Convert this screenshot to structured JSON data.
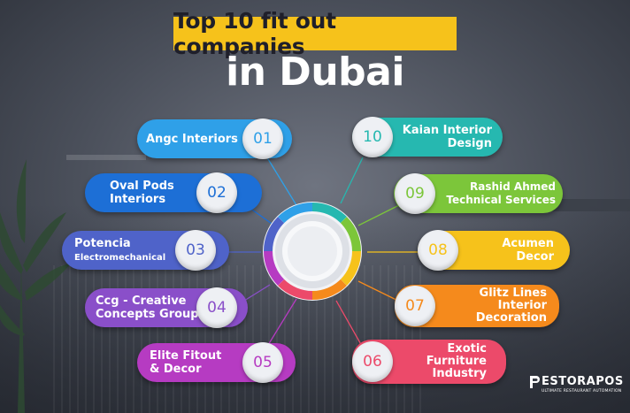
{
  "title": {
    "line1": "Top 10 fit out companies",
    "line2": "in Dubai",
    "highlight_color": "#f6c21b"
  },
  "companies_left": [
    {
      "num": "01",
      "name": "Angc Interiors",
      "color": "#2fa0e8"
    },
    {
      "num": "02",
      "name": "Oval Pods Interiors",
      "name_line1": "Oval Pods",
      "name_line2": "Interiors",
      "color": "#1d6fd6"
    },
    {
      "num": "03",
      "name": "Potencia Electromechanical",
      "name_line1": "Potencia",
      "name_line2": "Electromechanical",
      "color": "#4f63c9"
    },
    {
      "num": "04",
      "name": "Ccg - Creative Concepts Group",
      "name_line1": "Ccg - Creative",
      "name_line2": "Concepts Group",
      "color": "#8a4fc9"
    },
    {
      "num": "05",
      "name": "Elite Fitout & Decor",
      "name_line1": "Elite Fitout",
      "name_line2": "& Decor",
      "color": "#b63bc2"
    }
  ],
  "companies_right": [
    {
      "num": "10",
      "name": "Kaian Interior Design",
      "name_line1": "Kaian Interior",
      "name_line2": "Design",
      "color": "#26b8b0"
    },
    {
      "num": "09",
      "name": "Rashid Ahmed Technical Services",
      "name_line1": "Rashid Ahmed",
      "name_line2": "Technical Services",
      "color": "#7cc63a"
    },
    {
      "num": "08",
      "name": "Acumen Decor",
      "name_line1": "Acumen",
      "name_line2": "Decor",
      "color": "#f6c21b"
    },
    {
      "num": "07",
      "name": "Glitz Lines Interior Decoration",
      "name_line1": "Glitz Lines",
      "name_line2": "Interior",
      "name_line3": "Decoration",
      "color": "#f58a1c"
    },
    {
      "num": "06",
      "name": "Exotic Furniture Industry",
      "name_line1": "Exotic",
      "name_line2": "Furniture",
      "name_line3": "Industry",
      "color": "#ec4a6a"
    }
  ],
  "brand": {
    "name": "ESTORAPOS",
    "tagline": "ULTIMATE RESTAURANT AUTOMATION",
    "icon": "pestorapos-logo-icon"
  }
}
